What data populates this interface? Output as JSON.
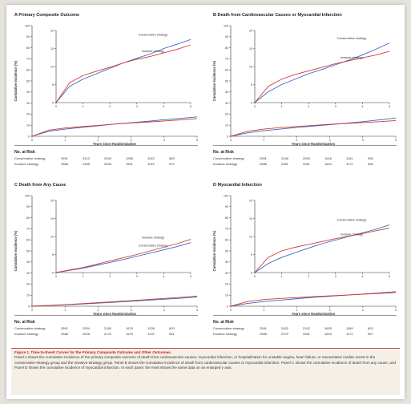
{
  "figure": {
    "caption_title": "Figure 1. Time-to-Event Curves for the Primary Composite Outcome and Other Outcomes.",
    "caption_body": "Panel A shows the cumulative incidence of the primary composite outcome of death from cardiovascular causes, myocardial infarction, or hospitalization for unstable angina, heart failure, or resuscitated cardiac arrest in the conservative-strategy group and the invasive-strategy group. Panel B shows the cumulative incidence of death from cardiovascular causes or myocardial infarction. Panel C shows the cumulative incidence of death from any cause, and Panel D shows the cumulative incidence of myocardial infarction. In each panel, the inset shows the same data on an enlarged y axis."
  },
  "colors": {
    "conservative": "#3a62c4",
    "invasive": "#d23a2a"
  },
  "chart_data": [
    {
      "panel": "A",
      "type": "line",
      "title": "A  Primary Composite Outcome",
      "xlabel": "Years since Randomization",
      "ylabel": "Cumulative Incidence (%)",
      "x_ticks": [
        0,
        1,
        2,
        3,
        4,
        5
      ],
      "ylim": [
        0,
        100
      ],
      "y_ticks": [
        0,
        10,
        20,
        30,
        40,
        50,
        60,
        70,
        80,
        90,
        100
      ],
      "inset": {
        "ylim": [
          0,
          20
        ],
        "y_ticks": [
          0,
          5,
          10,
          15,
          20
        ],
        "x_ticks": [
          0,
          1,
          2,
          3,
          4,
          5
        ]
      },
      "labels": {
        "conservative": "Conservative strategy",
        "invasive": "Invasive strategy"
      },
      "series": [
        {
          "name": "Conservative strategy",
          "x": [
            0,
            0.5,
            1,
            1.5,
            2,
            2.5,
            3,
            3.5,
            4,
            4.5,
            5
          ],
          "values": [
            0,
            4.5,
            6.5,
            8.0,
            9.5,
            11.0,
            12.3,
            13.5,
            15.0,
            16.2,
            17.5
          ]
        },
        {
          "name": "Invasive strategy",
          "x": [
            0,
            0.5,
            1,
            1.5,
            2,
            2.5,
            3,
            3.5,
            4,
            4.5,
            5
          ],
          "values": [
            0,
            5.5,
            7.5,
            8.7,
            9.8,
            11.0,
            12.0,
            12.8,
            13.8,
            14.8,
            16.0
          ]
        }
      ],
      "at_risk": {
        "header": "No. at Risk",
        "rows": [
          {
            "name": "Conservative strategy",
            "values": [
              "2591",
              "2413",
              "2045",
              "1558",
              "1133",
              "583"
            ]
          },
          {
            "name": "Invasive strategy",
            "values": [
              "2588",
              "2358",
              "2008",
              "1561",
              "1133",
              "572"
            ]
          }
        ]
      }
    },
    {
      "panel": "B",
      "type": "line",
      "title": "B  Death from Cardiovascular Causes or Myocardial Infarction",
      "xlabel": "Years since Randomization",
      "ylabel": "Cumulative Incidence (%)",
      "x_ticks": [
        0,
        1,
        2,
        3,
        4,
        5
      ],
      "ylim": [
        0,
        100
      ],
      "y_ticks": [
        0,
        10,
        20,
        30,
        40,
        50,
        60,
        70,
        80,
        90,
        100
      ],
      "inset": {
        "ylim": [
          0,
          20
        ],
        "y_ticks": [
          0,
          5,
          10,
          15,
          20
        ],
        "x_ticks": [
          0,
          1,
          2,
          3,
          4,
          5
        ]
      },
      "labels": {
        "conservative": "Conservative strategy",
        "invasive": "Invasive strategy"
      },
      "series": [
        {
          "name": "Conservative strategy",
          "x": [
            0,
            0.5,
            1,
            1.5,
            2,
            2.5,
            3,
            3.5,
            4,
            4.5,
            5
          ],
          "values": [
            0,
            3.0,
            5.0,
            6.5,
            8.0,
            9.2,
            10.5,
            11.8,
            13.2,
            14.8,
            16.5
          ]
        },
        {
          "name": "Invasive strategy",
          "x": [
            0,
            0.5,
            1,
            1.5,
            2,
            2.5,
            3,
            3.5,
            4,
            4.5,
            5
          ],
          "values": [
            0,
            4.5,
            6.5,
            7.8,
            8.8,
            9.8,
            10.8,
            11.6,
            12.4,
            13.2,
            14.2
          ]
        }
      ],
      "at_risk": {
        "header": "No. at Risk",
        "rows": [
          {
            "name": "Conservative strategy",
            "values": [
              "2591",
              "2448",
              "2093",
              "1616",
              "1181",
              "598"
            ]
          },
          {
            "name": "Invasive strategy",
            "values": [
              "2588",
              "2381",
              "2051",
              "1604",
              "1172",
              "596"
            ]
          }
        ]
      }
    },
    {
      "panel": "C",
      "type": "line",
      "title": "C  Death from Any Cause",
      "xlabel": "Years since Randomization",
      "ylabel": "Cumulative Incidence (%)",
      "x_ticks": [
        0,
        1,
        2,
        3,
        4,
        5
      ],
      "ylim": [
        0,
        100
      ],
      "y_ticks": [
        0,
        10,
        20,
        30,
        40,
        50,
        60,
        70,
        80,
        90,
        100
      ],
      "inset": {
        "ylim": [
          0,
          20
        ],
        "y_ticks": [
          0,
          5,
          10,
          15,
          20
        ],
        "x_ticks": [
          0,
          1,
          2,
          3,
          4,
          5
        ]
      },
      "labels": {
        "conservative": "Conservative strategy",
        "invasive": "Invasive strategy"
      },
      "series": [
        {
          "name": "Conservative strategy",
          "x": [
            0,
            0.5,
            1,
            1.5,
            2,
            2.5,
            3,
            3.5,
            4,
            4.5,
            5
          ],
          "values": [
            0,
            0.6,
            1.2,
            2.0,
            2.8,
            3.6,
            4.5,
            5.4,
            6.3,
            7.2,
            8.3
          ]
        },
        {
          "name": "Invasive strategy",
          "x": [
            0,
            0.5,
            1,
            1.5,
            2,
            2.5,
            3,
            3.5,
            4,
            4.5,
            5
          ],
          "values": [
            0,
            0.7,
            1.4,
            2.3,
            3.2,
            4.1,
            5.0,
            6.0,
            7.0,
            8.0,
            9.2
          ]
        }
      ],
      "at_risk": {
        "header": "No. at Risk",
        "rows": [
          {
            "name": "Conservative strategy",
            "values": [
              "2591",
              "2534",
              "2165",
              "1679",
              "1228",
              "620"
            ]
          },
          {
            "name": "Invasive strategy",
            "values": [
              "2588",
              "2528",
              "2176",
              "1676",
              "1237",
              "631"
            ]
          }
        ]
      }
    },
    {
      "panel": "D",
      "type": "line",
      "title": "D  Myocardial Infarction",
      "xlabel": "Years since Randomization",
      "ylabel": "Cumulative Incidence (%)",
      "x_ticks": [
        0,
        1,
        2,
        3,
        4,
        5
      ],
      "ylim": [
        0,
        100
      ],
      "y_ticks": [
        0,
        10,
        20,
        30,
        40,
        50,
        60,
        70,
        80,
        90,
        100
      ],
      "inset": {
        "ylim": [
          0,
          20
        ],
        "y_ticks": [
          0,
          5,
          10,
          15,
          20
        ],
        "x_ticks": [
          0,
          1,
          2,
          3,
          4,
          5
        ]
      },
      "labels": {
        "conservative": "Conservative strategy",
        "invasive": "Invasive strategy"
      },
      "series": [
        {
          "name": "Conservative strategy",
          "x": [
            0,
            0.5,
            1,
            1.5,
            2,
            2.5,
            3,
            3.5,
            4,
            4.5,
            5
          ],
          "values": [
            0,
            2.5,
            4.2,
            5.5,
            6.8,
            8.0,
            9.0,
            10.0,
            11.0,
            12.0,
            13.2
          ]
        },
        {
          "name": "Invasive strategy",
          "x": [
            0,
            0.5,
            1,
            1.5,
            2,
            2.5,
            3,
            3.5,
            4,
            4.5,
            5
          ],
          "values": [
            0,
            4.2,
            6.0,
            7.0,
            7.8,
            8.6,
            9.4,
            10.1,
            10.8,
            11.6,
            12.3
          ]
        }
      ],
      "at_risk": {
        "header": "No. at Risk",
        "rows": [
          {
            "name": "Conservative strategy",
            "values": [
              "2591",
              "2452",
              "2102",
              "1625",
              "1189",
              "602"
            ]
          },
          {
            "name": "Invasive strategy",
            "values": [
              "2588",
              "2379",
              "2051",
              "1603",
              "1172",
              "597"
            ]
          }
        ]
      }
    }
  ]
}
